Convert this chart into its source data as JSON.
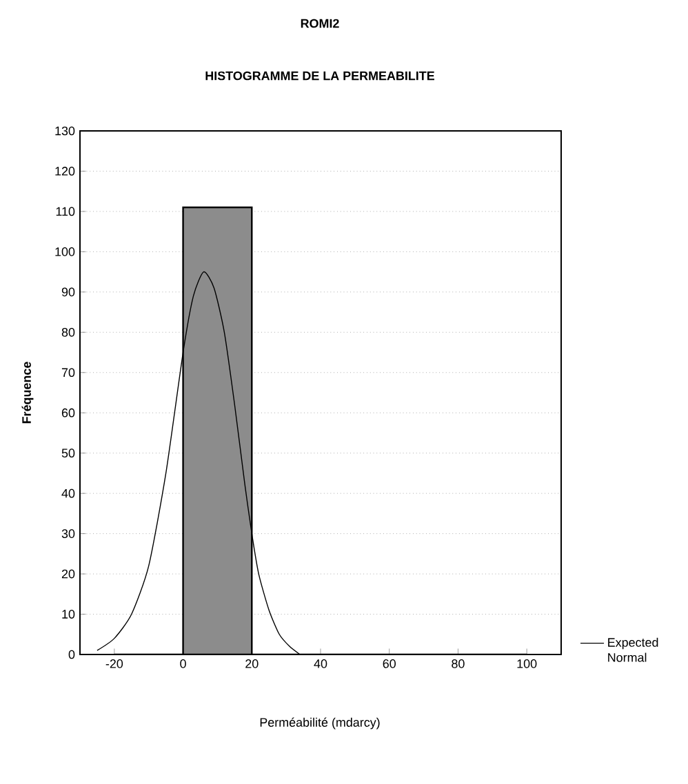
{
  "chart_data": {
    "type": "histogram",
    "title": "ROMI2",
    "subtitle": "HISTOGRAMME DE LA PERMEABILITE",
    "xlabel": "Perméabilité (mdarcy)",
    "ylabel": "Fréquence",
    "xlim": [
      -30,
      110
    ],
    "xticks": [
      -20,
      0,
      20,
      40,
      60,
      80,
      100
    ],
    "ylim": [
      0,
      130
    ],
    "yticks": [
      0,
      10,
      20,
      30,
      40,
      50,
      60,
      70,
      80,
      90,
      100,
      110,
      120,
      130
    ],
    "grid": "y",
    "legend": "bottom right",
    "series": [
      {
        "color": "#000000",
        "bins": [
          -20,
          0,
          20,
          40,
          60,
          80,
          100
        ],
        "values": [
          0,
          111,
          0,
          0,
          0,
          0
        ]
      },
      {
        "type": "line",
        "name": "Expected Normal",
        "color": "#000000",
        "x": [
          -25,
          -20,
          -15,
          -10,
          -5,
          0,
          3,
          6,
          9,
          12,
          15,
          18,
          20,
          22,
          25,
          28,
          31,
          34
        ],
        "values": [
          1,
          4,
          10,
          22,
          45,
          75,
          89,
          95,
          91,
          80,
          62,
          42,
          30,
          20,
          11,
          5,
          2,
          0
        ]
      }
    ]
  }
}
